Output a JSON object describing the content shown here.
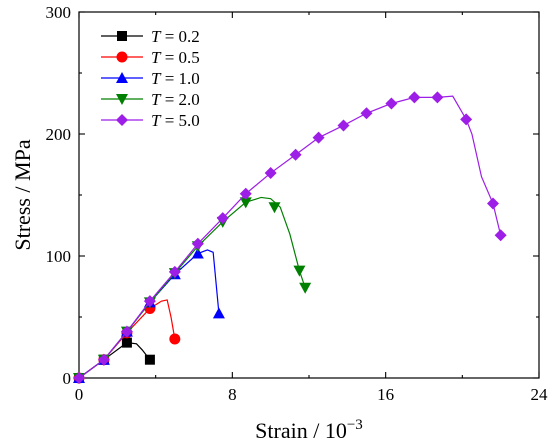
{
  "chart_data": {
    "type": "line",
    "xlabel": "Strain / 10",
    "xlabel_sup": "−3",
    "ylabel": "Stress / MPa",
    "xlim": [
      0,
      24
    ],
    "ylim": [
      0,
      300
    ],
    "xticks": [
      0,
      8,
      16,
      24
    ],
    "yticks": [
      0,
      100,
      200,
      300
    ],
    "grid": false,
    "legend_position": "top-left",
    "legend_var": "T",
    "series": [
      {
        "name": "= 0.2",
        "color": "#000000",
        "marker": "square",
        "x": [
          0,
          1.3,
          2.5,
          3.0,
          3.3,
          3.7
        ],
        "y": [
          0,
          15,
          29,
          28,
          23,
          15
        ],
        "markers": [
          [
            0,
            0
          ],
          [
            1.3,
            15
          ],
          [
            2.5,
            29
          ],
          [
            3.7,
            15
          ]
        ]
      },
      {
        "name": "= 0.5",
        "color": "#ff0000",
        "marker": "circle",
        "x": [
          0,
          1.3,
          2.5,
          3.7,
          4.3,
          4.6,
          4.8,
          5.0
        ],
        "y": [
          0,
          15,
          37,
          57,
          63,
          64,
          50,
          32
        ],
        "markers": [
          [
            0,
            0
          ],
          [
            1.3,
            15
          ],
          [
            2.5,
            37
          ],
          [
            3.7,
            57
          ],
          [
            5.0,
            32
          ]
        ]
      },
      {
        "name": "= 1.0",
        "color": "#0000ff",
        "marker": "triangle-up",
        "x": [
          0,
          1.3,
          2.5,
          3.7,
          5.0,
          6.2,
          6.7,
          7.0,
          7.3
        ],
        "y": [
          0,
          15,
          38,
          62,
          85,
          102,
          105,
          103,
          53
        ],
        "markers": [
          [
            0,
            0
          ],
          [
            1.3,
            15
          ],
          [
            2.5,
            38
          ],
          [
            3.7,
            62
          ],
          [
            5.0,
            85
          ],
          [
            6.2,
            102
          ],
          [
            7.3,
            53
          ]
        ]
      },
      {
        "name": "= 2.0",
        "color": "#008000",
        "marker": "triangle-down",
        "x": [
          0,
          1.3,
          2.5,
          3.7,
          5.0,
          6.2,
          7.5,
          8.7,
          9.5,
          10.0,
          10.5,
          11.0,
          11.5,
          11.8
        ],
        "y": [
          0,
          15,
          38,
          62,
          86,
          108,
          128,
          144,
          148,
          147,
          140,
          118,
          88,
          74
        ],
        "markers": [
          [
            0,
            0
          ],
          [
            1.3,
            15
          ],
          [
            2.5,
            38
          ],
          [
            3.7,
            62
          ],
          [
            5.0,
            86
          ],
          [
            6.2,
            108
          ],
          [
            7.5,
            128
          ],
          [
            8.7,
            144
          ],
          [
            10.2,
            140
          ],
          [
            11.5,
            88
          ],
          [
            11.8,
            74
          ]
        ]
      },
      {
        "name": "= 5.0",
        "color": "#9d1ee6",
        "marker": "diamond",
        "x": [
          0,
          1.3,
          2.5,
          3.7,
          5.0,
          6.2,
          7.5,
          8.7,
          10.0,
          11.3,
          12.5,
          13.8,
          15.0,
          16.3,
          17.5,
          18.7,
          19.5,
          20.2,
          20.5,
          21.0,
          21.6,
          22.0
        ],
        "y": [
          0,
          15,
          38,
          63,
          87,
          110,
          131,
          151,
          168,
          183,
          197,
          207,
          217,
          225,
          230,
          230,
          231,
          212,
          200,
          165,
          143,
          117
        ],
        "markers": [
          [
            0,
            0
          ],
          [
            1.3,
            15
          ],
          [
            2.5,
            38
          ],
          [
            3.7,
            63
          ],
          [
            5.0,
            87
          ],
          [
            6.2,
            110
          ],
          [
            7.5,
            131
          ],
          [
            8.7,
            151
          ],
          [
            10.0,
            168
          ],
          [
            11.3,
            183
          ],
          [
            12.5,
            197
          ],
          [
            13.8,
            207
          ],
          [
            15.0,
            217
          ],
          [
            16.3,
            225
          ],
          [
            17.5,
            230
          ],
          [
            18.7,
            230
          ],
          [
            20.2,
            212
          ],
          [
            21.6,
            143
          ],
          [
            22.0,
            117
          ]
        ]
      }
    ]
  }
}
